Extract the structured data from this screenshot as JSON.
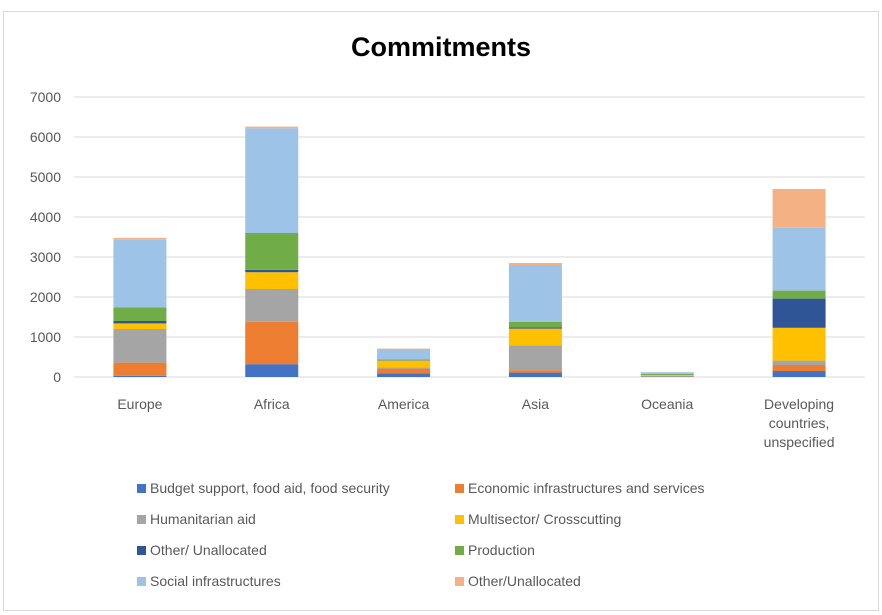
{
  "chart_data": {
    "type": "bar",
    "stacked": true,
    "title": "Commitments",
    "xlabel": "",
    "ylabel": "",
    "ylim": [
      0,
      7000
    ],
    "yticks": [
      0,
      1000,
      2000,
      3000,
      4000,
      5000,
      6000,
      7000
    ],
    "grid": true,
    "legend_position": "bottom",
    "categories": [
      "Europe",
      "Africa",
      "America",
      "Asia",
      "Oceania",
      "Developing countries, unspecified"
    ],
    "category_lines": [
      [
        "Europe"
      ],
      [
        "Africa"
      ],
      [
        "America"
      ],
      [
        "Asia"
      ],
      [
        "Oceania"
      ],
      [
        "Developing",
        "countries,",
        "unspecified"
      ]
    ],
    "series": [
      {
        "name": "Budget support, food aid, food security",
        "color": "#4472C4",
        "values": [
          30,
          320,
          90,
          110,
          10,
          150
        ]
      },
      {
        "name": "Economic infrastructures and services",
        "color": "#ED7D31",
        "values": [
          330,
          1060,
          120,
          60,
          10,
          150
        ]
      },
      {
        "name": "Humanitarian aid",
        "color": "#A5A5A5",
        "values": [
          840,
          820,
          30,
          620,
          10,
          110
        ]
      },
      {
        "name": "Multisector/ Crosscutting",
        "color": "#FFC000",
        "values": [
          140,
          420,
          170,
          420,
          20,
          820
        ]
      },
      {
        "name": "Other/ Unallocated",
        "color": "#2F5597",
        "values": [
          60,
          60,
          10,
          30,
          0,
          730
        ]
      },
      {
        "name": "Production",
        "color": "#70AD47",
        "values": [
          340,
          920,
          20,
          140,
          30,
          200
        ]
      },
      {
        "name": "Social infrastructures",
        "color": "#9DC3E6",
        "values": [
          1690,
          2620,
          260,
          1420,
          40,
          1570
        ]
      },
      {
        "name": "Other/Unallocated",
        "color": "#F4B183",
        "values": [
          50,
          40,
          10,
          50,
          0,
          970
        ]
      }
    ]
  }
}
